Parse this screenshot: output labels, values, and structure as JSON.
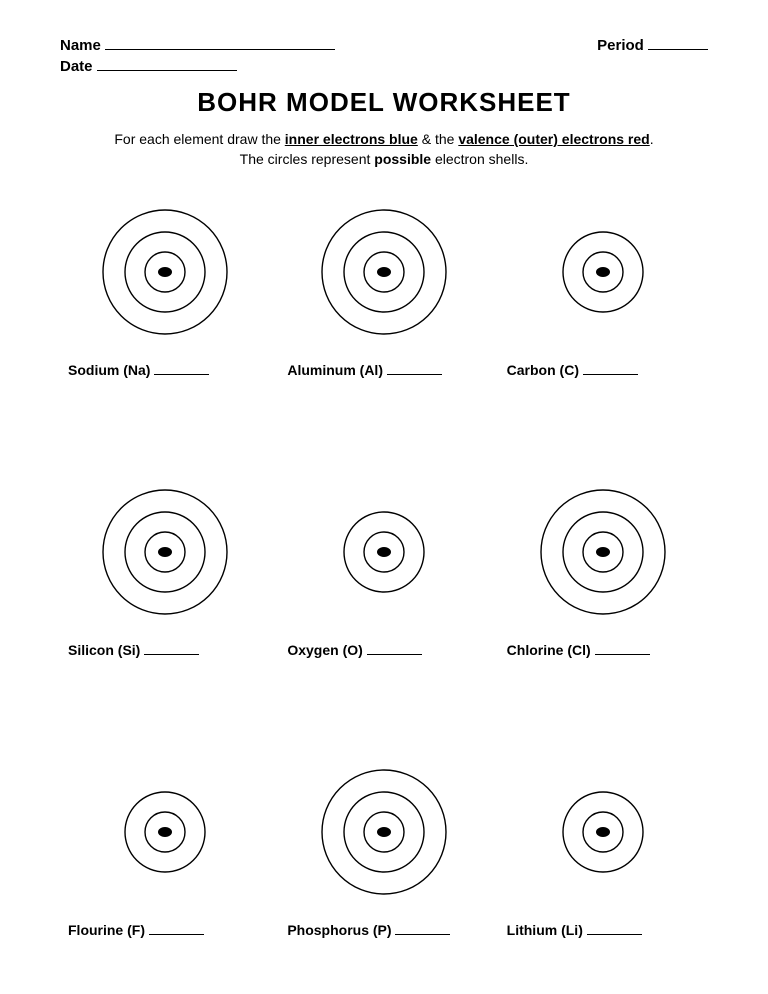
{
  "header": {
    "name_label": "Name",
    "name_line_width": 230,
    "period_label": "Period",
    "period_line_width": 60,
    "date_label": "Date",
    "date_line_width": 140
  },
  "title": "BOHR MODEL WORKSHEET",
  "instructions": {
    "prefix": "For each element draw the ",
    "inner": "inner electrons blue",
    "mid": " & the ",
    "valence": "valence (outer) electrons red",
    "suffix": ".",
    "line2a": "The circles represent ",
    "line2b": "possible",
    "line2c": " electron shells."
  },
  "diagram_style": {
    "stroke": "#000000",
    "stroke_width": 1.4,
    "nucleus_rx": 7,
    "nucleus_ry": 5,
    "nucleus_fill": "#000000",
    "shell_radii": {
      "r1": 20,
      "r2": 40,
      "r3": 62
    },
    "svg_large": 150,
    "svg_small": 110
  },
  "blank_line_width": 55,
  "elements": [
    {
      "label": "Sodium (Na)",
      "shells": 3,
      "size": "large"
    },
    {
      "label": "Aluminum (Al)",
      "shells": 3,
      "size": "large"
    },
    {
      "label": "Carbon (C)",
      "shells": 2,
      "size": "small"
    },
    {
      "label": "Silicon (Si)",
      "shells": 3,
      "size": "large"
    },
    {
      "label": "Oxygen (O)",
      "shells": 2,
      "size": "small"
    },
    {
      "label": "Chlorine (Cl)",
      "shells": 3,
      "size": "large"
    },
    {
      "label": "Flourine (F)",
      "shells": 2,
      "size": "small"
    },
    {
      "label": "Phosphorus (P)",
      "shells": 3,
      "size": "large"
    },
    {
      "label": "Lithium (Li)",
      "shells": 2,
      "size": "small"
    }
  ]
}
